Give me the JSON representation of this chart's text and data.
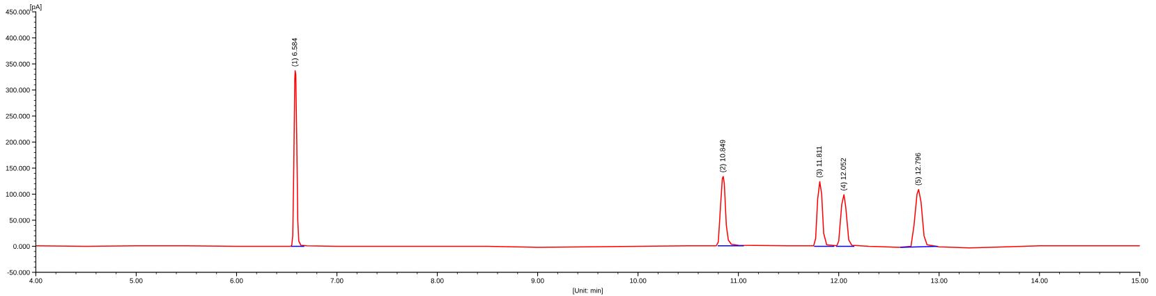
{
  "chart_data": {
    "type": "line",
    "xlabel": "[Unit: min]",
    "ylabel": "[pA]",
    "xlim": [
      4,
      15
    ],
    "ylim": [
      -50,
      450
    ],
    "xticks": [
      {
        "value": 4,
        "label": "4.00"
      },
      {
        "value": 5,
        "label": "5.00"
      },
      {
        "value": 6,
        "label": "6.00"
      },
      {
        "value": 7,
        "label": "7.00"
      },
      {
        "value": 8,
        "label": "8.00"
      },
      {
        "value": 9,
        "label": "9.00"
      },
      {
        "value": 10,
        "label": "10.00"
      },
      {
        "value": 11,
        "label": "11.00"
      },
      {
        "value": 12,
        "label": "12.00"
      },
      {
        "value": 13,
        "label": "13.00"
      },
      {
        "value": 14,
        "label": "14.00"
      },
      {
        "value": 15,
        "label": "15.00"
      }
    ],
    "yticks": [
      {
        "value": -50,
        "label": "-50.000"
      },
      {
        "value": 0,
        "label": "0.000"
      },
      {
        "value": 50,
        "label": "50.000"
      },
      {
        "value": 100,
        "label": "100.000"
      },
      {
        "value": 150,
        "label": "150.000"
      },
      {
        "value": 200,
        "label": "200.000"
      },
      {
        "value": 250,
        "label": "250.000"
      },
      {
        "value": 300,
        "label": "300.000"
      },
      {
        "value": 350,
        "label": "350.000"
      },
      {
        "value": 400,
        "label": "400.000"
      },
      {
        "value": 450,
        "label": "450.000"
      }
    ],
    "grid": false,
    "marker": "none",
    "line_style": "solid",
    "series": [
      {
        "color": "#ff0000",
        "x": [
          4.0,
          4.5,
          5.0,
          5.5,
          6.0,
          6.5,
          6.54,
          6.55,
          6.56,
          6.57,
          6.58,
          6.584,
          6.59,
          6.6,
          6.61,
          6.62,
          6.64,
          6.7,
          7.0,
          7.5,
          8.0,
          8.5,
          9.0,
          9.5,
          10.0,
          10.5,
          10.78,
          10.8,
          10.82,
          10.84,
          10.849,
          10.86,
          10.88,
          10.9,
          10.93,
          11.0,
          11.5,
          11.75,
          11.77,
          11.79,
          11.811,
          11.83,
          11.85,
          11.88,
          11.98,
          12.0,
          12.03,
          12.052,
          12.07,
          12.1,
          12.13,
          12.3,
          12.6,
          12.72,
          12.75,
          12.78,
          12.796,
          12.82,
          12.85,
          12.88,
          13.0,
          13.3,
          13.5,
          14.0,
          14.5,
          15.0
        ],
        "values": [
          1,
          0,
          1,
          1,
          0,
          0,
          0,
          2,
          20,
          150,
          320,
          337,
          330,
          200,
          50,
          10,
          2,
          1,
          0,
          0,
          0,
          0,
          -2,
          -1,
          0,
          1,
          1,
          8,
          70,
          130,
          134,
          120,
          40,
          12,
          4,
          2,
          1,
          1,
          15,
          90,
          124,
          100,
          25,
          3,
          1,
          10,
          80,
          99,
          75,
          12,
          2,
          0,
          -2,
          0,
          40,
          100,
          109,
          85,
          20,
          3,
          -1,
          -3,
          -2,
          1,
          1,
          1
        ]
      },
      {
        "color": "#0000ff",
        "x": [
          6.55,
          6.67,
          6.68,
          10.8,
          11.05,
          11.06,
          11.76,
          11.95,
          11.96,
          11.98,
          12.15,
          12.16,
          12.62,
          12.98
        ],
        "values": [
          0,
          0,
          null,
          1,
          1,
          null,
          0,
          0,
          null,
          0,
          0,
          null,
          -2,
          0
        ]
      }
    ],
    "annotations": [
      {
        "text": "(1) 6.584",
        "x": 6.584,
        "y": 337
      },
      {
        "text": "(2) 10.849",
        "x": 10.849,
        "y": 134
      },
      {
        "text": "(3) 11.811",
        "x": 11.811,
        "y": 124
      },
      {
        "text": "(4) 12.052",
        "x": 12.052,
        "y": 99
      },
      {
        "text": "(5) 12.796",
        "x": 12.796,
        "y": 109
      }
    ]
  }
}
